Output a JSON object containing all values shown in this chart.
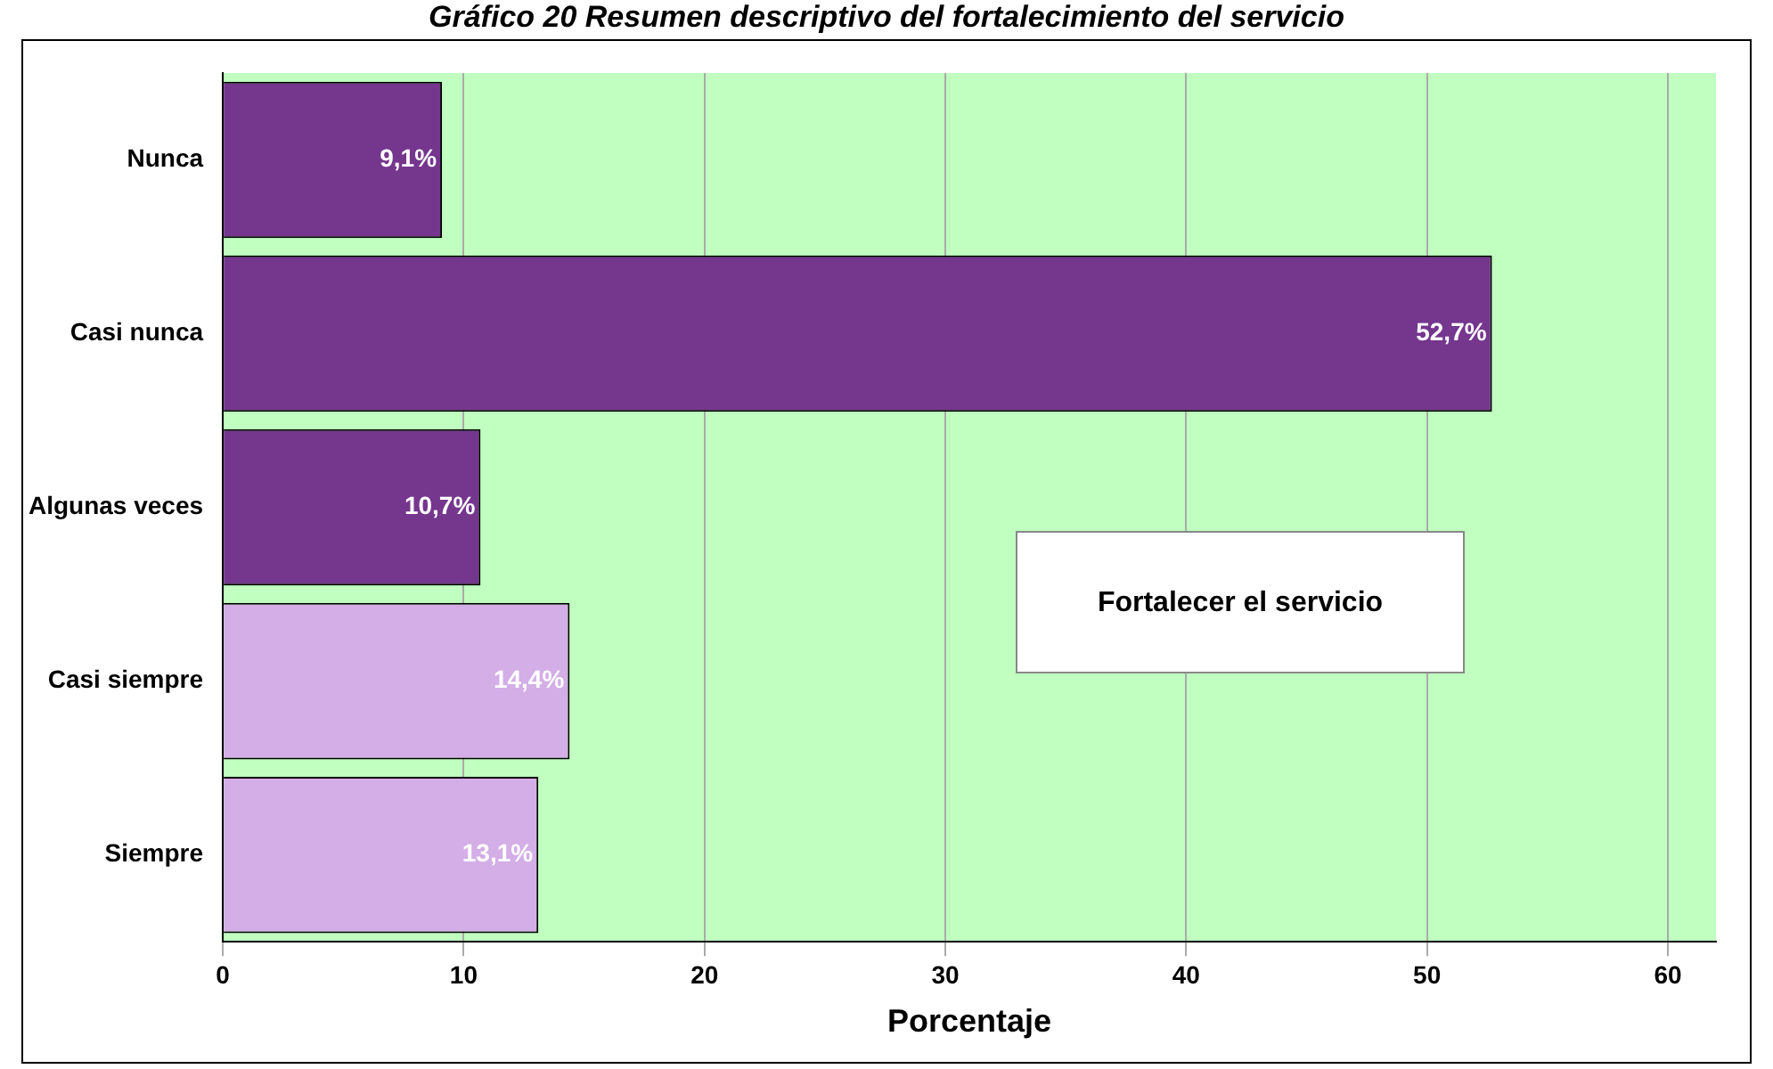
{
  "chart_data": {
    "type": "bar",
    "orientation": "horizontal",
    "title": "Gráfico 20 Resumen descriptivo del fortalecimiento del servicio",
    "xlabel": "Porcentaje",
    "categories": [
      "Nunca",
      "Casi nunca",
      "Algunas veces",
      "Casi siempre",
      "Siempre"
    ],
    "values": [
      9.1,
      52.7,
      10.7,
      14.4,
      13.1
    ],
    "colors": [
      "#75368e",
      "#75368e",
      "#75368e",
      "#d4aee6",
      "#d4aee6"
    ],
    "value_labels": [
      "9,1%",
      "52,7%",
      "10,7%",
      "14,4%",
      "13,1%"
    ],
    "xlim": [
      0,
      62
    ],
    "xticks": [
      0,
      10,
      20,
      30,
      40,
      50,
      60
    ],
    "grid": "x",
    "legend": false,
    "annotations": [
      "Fortalecer el servicio"
    ]
  }
}
